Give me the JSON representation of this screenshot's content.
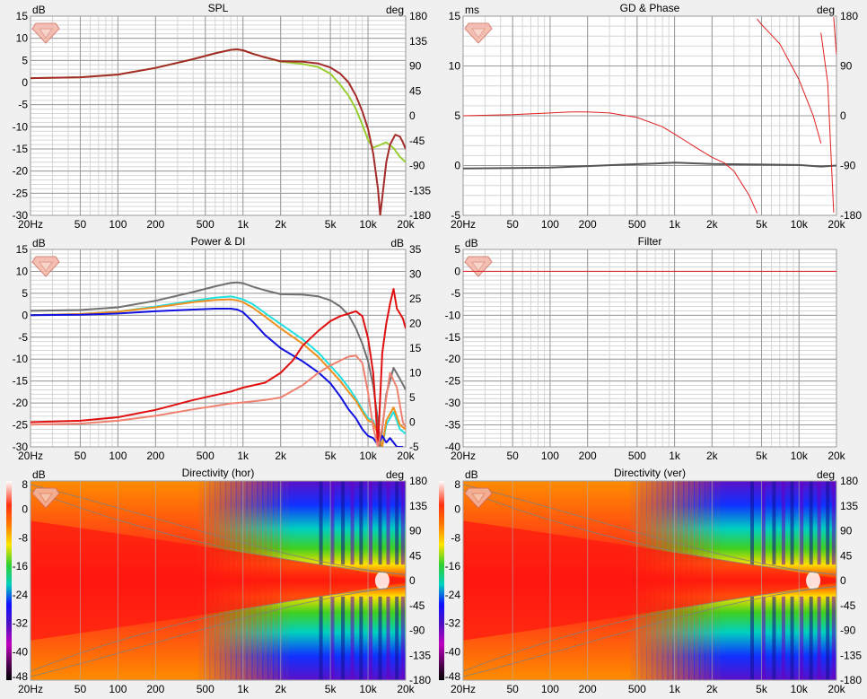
{
  "colors": {
    "spl_on_axis": "#a52a2a",
    "spl_listening": "#9acd32",
    "gd": "#555555",
    "phase": "#e02020",
    "power_total": "#707070",
    "power_cyan": "#20e0e0",
    "power_orange": "#f09020",
    "power_blue": "#1010e0",
    "di_red": "#e01010",
    "di_salmon": "#f08070",
    "filter": "#e02020"
  },
  "freq_ticks": [
    {
      "f": 20,
      "label": "20Hz"
    },
    {
      "f": 50,
      "label": "50"
    },
    {
      "f": 100,
      "label": "100"
    },
    {
      "f": 200,
      "label": "200"
    },
    {
      "f": 500,
      "label": "500"
    },
    {
      "f": 1000,
      "label": "1k"
    },
    {
      "f": 2000,
      "label": "2k"
    },
    {
      "f": 5000,
      "label": "5k"
    },
    {
      "f": 10000,
      "label": "10k"
    },
    {
      "f": 20000,
      "label": "20k"
    }
  ],
  "chart_data": [
    {
      "id": "spl",
      "type": "line",
      "title": "SPL",
      "ylabel": "dB",
      "y2label": "deg",
      "xscale": "log",
      "xlim": [
        20,
        20000
      ],
      "ylim": [
        -30,
        15
      ],
      "y2lim": [
        -180,
        180
      ],
      "yticks": [
        15,
        10,
        5,
        0,
        -5,
        -10,
        -15,
        -20,
        -25,
        -30
      ],
      "y2ticks": [
        180,
        135,
        90,
        45,
        0,
        -45,
        -90,
        -135,
        -180
      ],
      "y_label_skip_top": true,
      "series": [
        {
          "color_key": "spl_listening",
          "x": [
            20,
            50,
            100,
            200,
            400,
            600,
            800,
            900,
            1000,
            1200,
            1500,
            2000,
            3000,
            4000,
            5000,
            6000,
            7000,
            8000,
            9000,
            10000,
            11000,
            12000,
            14000,
            16000,
            18000,
            20000
          ],
          "y": [
            1,
            1.2,
            1.8,
            3.3,
            5.3,
            6.6,
            7.4,
            7.5,
            7.3,
            6.5,
            5.7,
            4.7,
            4.2,
            3.5,
            2,
            -0.5,
            -3,
            -6,
            -9.5,
            -13,
            -14.7,
            -14.3,
            -13.5,
            -14.8,
            -16.8,
            -18
          ]
        },
        {
          "color_key": "spl_on_axis",
          "x": [
            20,
            50,
            100,
            200,
            400,
            600,
            800,
            900,
            1000,
            1200,
            1500,
            2000,
            3000,
            4000,
            5000,
            6000,
            7000,
            8000,
            9000,
            10000,
            11000,
            12000,
            12500,
            13000,
            14000,
            15000,
            16500,
            18000,
            19000,
            20000
          ],
          "y": [
            1,
            1.2,
            1.8,
            3.3,
            5.3,
            6.6,
            7.4,
            7.5,
            7.3,
            6.5,
            5.7,
            4.8,
            4.7,
            4.3,
            3.4,
            2,
            0,
            -3,
            -6.5,
            -10.5,
            -16,
            -24,
            -30,
            -26,
            -18,
            -14,
            -11.8,
            -12.2,
            -13.5,
            -15
          ]
        }
      ]
    },
    {
      "id": "gdphase",
      "type": "line",
      "title": "GD & Phase",
      "ylabel": "ms",
      "y2label": "deg",
      "xscale": "log",
      "xlim": [
        20,
        20000
      ],
      "ylim": [
        -5,
        15
      ],
      "y2lim": [
        -180,
        180
      ],
      "yticks": [
        15,
        10,
        5,
        0,
        -5
      ],
      "y2ticks": [
        180,
        90,
        0,
        -90,
        -180
      ],
      "y_label_skip_top": false,
      "series": [
        {
          "color_key": "gd",
          "axis": "left",
          "x": [
            20,
            50,
            100,
            200,
            400,
            700,
            1000,
            2000,
            5000,
            10000,
            15000,
            20000
          ],
          "y": [
            -0.3,
            -0.25,
            -0.2,
            -0.05,
            0.1,
            0.2,
            0.3,
            0.15,
            0.1,
            0.05,
            -0.1,
            0
          ]
        },
        {
          "color_key": "phase",
          "axis": "right",
          "x": [
            20,
            50,
            100,
            150,
            200,
            300,
            500,
            800,
            1000,
            1500,
            2000,
            2500,
            3000,
            4000,
            4600,
            4601,
            5000,
            7000,
            10000,
            13000,
            15000,
            15001,
            17000,
            19000,
            19001,
            20000
          ],
          "y": [
            0,
            2,
            5,
            7,
            7,
            5,
            -3,
            -20,
            -33,
            -58,
            -75,
            -85,
            -100,
            -145,
            -176,
            175,
            165,
            130,
            65,
            0,
            -50,
            150,
            60,
            -175,
            178,
            110
          ]
        }
      ]
    },
    {
      "id": "powerdi",
      "type": "line",
      "title": "Power & DI",
      "ylabel": "dB",
      "y2label": "dB",
      "xscale": "log",
      "xlim": [
        20,
        20000
      ],
      "ylim": [
        -30,
        15
      ],
      "y2lim": [
        -5,
        35
      ],
      "yticks": [
        15,
        10,
        5,
        0,
        -5,
        -10,
        -15,
        -20,
        -25,
        -30
      ],
      "y2ticks": [
        35,
        30,
        25,
        20,
        15,
        10,
        5,
        0,
        -5
      ],
      "y_label_skip_top": true,
      "series": [
        {
          "color_key": "power_total",
          "axis": "left",
          "x": [
            20,
            50,
            100,
            200,
            400,
            600,
            800,
            900,
            1000,
            1200,
            1500,
            2000,
            3000,
            4000,
            5000,
            6000,
            7000,
            8000,
            9000,
            10000,
            11000,
            12000,
            12500,
            13000,
            14000,
            16000,
            18000,
            20000
          ],
          "y": [
            1,
            1.2,
            1.8,
            3.3,
            5.3,
            6.6,
            7.4,
            7.5,
            7.3,
            6.5,
            5.7,
            4.8,
            4.7,
            4.3,
            3.4,
            2,
            0,
            -3,
            -6.5,
            -10.5,
            -16,
            -24,
            -30,
            -26,
            -18,
            -12,
            -14.5,
            -17
          ]
        },
        {
          "color_key": "power_cyan",
          "axis": "left",
          "x": [
            20,
            50,
            100,
            200,
            400,
            600,
            800,
            900,
            1000,
            1200,
            1500,
            2000,
            3000,
            4000,
            5000,
            6000,
            7000,
            8000,
            9000,
            10000,
            11000,
            12000,
            13000,
            14000,
            16000,
            18000,
            20000
          ],
          "y": [
            0,
            0.3,
            0.8,
            2,
            3.3,
            4,
            4.3,
            4,
            3.6,
            2.5,
            0.5,
            -2,
            -5.5,
            -8.5,
            -11.5,
            -14,
            -16.5,
            -19,
            -21.5,
            -23.5,
            -24,
            -27,
            -30,
            -25,
            -22,
            -26,
            -27
          ]
        },
        {
          "color_key": "power_orange",
          "axis": "left",
          "x": [
            20,
            50,
            100,
            200,
            400,
            600,
            800,
            900,
            1000,
            1200,
            1500,
            2000,
            3000,
            4000,
            5000,
            6000,
            7000,
            8000,
            9000,
            10000,
            11000,
            12000,
            13000,
            14000,
            16000,
            18000,
            20000
          ],
          "y": [
            0,
            0.3,
            0.8,
            1.8,
            3,
            3.5,
            3.6,
            3.4,
            3,
            1.7,
            -0.3,
            -3,
            -6.5,
            -9.5,
            -12.5,
            -15,
            -17.5,
            -19.5,
            -22,
            -24,
            -24.5,
            -27,
            -30,
            -24,
            -21,
            -25,
            -26
          ]
        },
        {
          "color_key": "power_blue",
          "axis": "left",
          "x": [
            20,
            50,
            100,
            200,
            400,
            600,
            800,
            900,
            1000,
            1200,
            1500,
            2000,
            3000,
            4000,
            5000,
            6000,
            7000,
            8000,
            9000,
            10000,
            11000,
            12000,
            13000,
            14000,
            15000,
            17000,
            19000
          ],
          "y": [
            0,
            0.1,
            0.4,
            0.9,
            1.3,
            1.5,
            1.5,
            1.3,
            0.7,
            -1.5,
            -4.5,
            -7.5,
            -10.5,
            -13,
            -15.5,
            -18.5,
            -21.5,
            -23.5,
            -26,
            -27.5,
            -28,
            -29.5,
            -27.5,
            -29,
            -28,
            -30,
            -30
          ]
        },
        {
          "color_key": "di_red",
          "axis": "right",
          "x": [
            20,
            50,
            100,
            200,
            400,
            600,
            800,
            1000,
            1500,
            2000,
            2500,
            3000,
            4000,
            5000,
            6000,
            7000,
            8000,
            9000,
            10000,
            11000,
            11500,
            12000,
            12500,
            13000,
            14000,
            15000,
            16000,
            17000,
            18000,
            19000,
            20000
          ],
          "y": [
            0,
            0.3,
            1,
            2.5,
            4.5,
            5.5,
            6.2,
            7,
            8,
            10,
            12.5,
            15.5,
            18.5,
            20.5,
            21.5,
            22,
            22.5,
            21.5,
            17,
            10,
            3,
            -5,
            5,
            14,
            20,
            24,
            27,
            23,
            22,
            21,
            19
          ]
        },
        {
          "color_key": "di_salmon",
          "axis": "right",
          "x": [
            20,
            50,
            100,
            200,
            400,
            600,
            800,
            1000,
            1500,
            2000,
            3000,
            4000,
            5000,
            6000,
            7000,
            8000,
            9000,
            10000,
            11000,
            12000,
            13000,
            14000,
            15000,
            17000,
            19000,
            20000
          ],
          "y": [
            -0.5,
            -0.3,
            0.3,
            1.3,
            2.6,
            3.3,
            3.8,
            4,
            4.5,
            5,
            7.5,
            10,
            11.5,
            12.5,
            13.3,
            13.5,
            12,
            6,
            -1,
            -5,
            -1,
            5,
            10,
            7,
            0,
            -1
          ]
        }
      ]
    },
    {
      "id": "filter",
      "type": "line",
      "title": "Filter",
      "ylabel": "dB",
      "y2label": "",
      "xscale": "log",
      "xlim": [
        20,
        20000
      ],
      "ylim": [
        -40,
        5
      ],
      "yticks": [
        5,
        0,
        -5,
        -10,
        -15,
        -20,
        -25,
        -30,
        -35,
        -40
      ],
      "y_label_skip_top": true,
      "series": [
        {
          "color_key": "filter",
          "axis": "left",
          "x": [
            20,
            20000
          ],
          "y": [
            0,
            0
          ]
        }
      ]
    },
    {
      "id": "dir_hor",
      "type": "heatmap",
      "title": "Directivity (hor)",
      "ylabel": "dB",
      "y2label": "deg",
      "xscale": "log",
      "xlim": [
        20,
        20000
      ],
      "ylim": [
        -180,
        180
      ],
      "colorbar_ticks": [
        8,
        0,
        -8,
        -16,
        -24,
        -32,
        -40,
        -48
      ],
      "y2ticks": [
        180,
        135,
        90,
        45,
        0,
        -45,
        -90,
        -135,
        -180
      ]
    },
    {
      "id": "dir_ver",
      "type": "heatmap",
      "title": "Directivity (ver)",
      "ylabel": "dB",
      "y2label": "deg",
      "xscale": "log",
      "xlim": [
        20,
        20000
      ],
      "ylim": [
        -180,
        180
      ],
      "colorbar_ticks": [
        8,
        0,
        -8,
        -16,
        -24,
        -32,
        -40,
        -48
      ],
      "y2ticks": [
        180,
        135,
        90,
        45,
        0,
        -45,
        -90,
        -135,
        -180
      ]
    }
  ]
}
